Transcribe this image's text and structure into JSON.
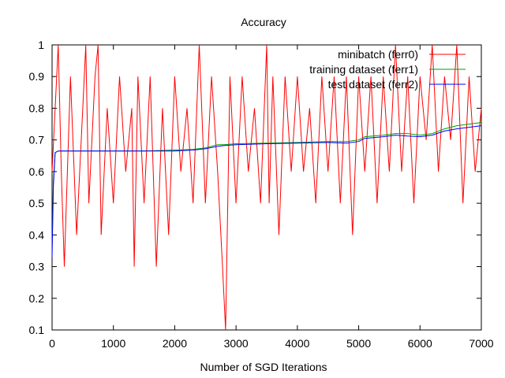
{
  "chart_data": {
    "type": "line",
    "title": "Accuracy",
    "xlabel": "Number of SGD Iterations",
    "ylabel": "",
    "xlim": [
      0,
      7000
    ],
    "ylim": [
      0.1,
      1
    ],
    "grid": false,
    "legend_position": "top-right",
    "x_ticks": [
      "0",
      "1000",
      "2000",
      "3000",
      "4000",
      "5000",
      "6000",
      "7000"
    ],
    "y_ticks": [
      "0.1",
      "0.2",
      "0.3",
      "0.4",
      "0.5",
      "0.6",
      "0.7",
      "0.8",
      "0.9",
      "1"
    ],
    "series": [
      {
        "name": "minibatch (ferr0)",
        "color": "#ff0000",
        "x": [
          0,
          50,
          100,
          150,
          200,
          300,
          400,
          500,
          550,
          600,
          700,
          750,
          800,
          900,
          1000,
          1100,
          1200,
          1300,
          1340,
          1400,
          1500,
          1600,
          1700,
          1800,
          1900,
          2000,
          2100,
          2200,
          2300,
          2400,
          2500,
          2600,
          2700,
          2780,
          2830,
          2900,
          3000,
          3100,
          3200,
          3300,
          3400,
          3500,
          3540,
          3600,
          3700,
          3800,
          3900,
          4000,
          4100,
          4200,
          4300,
          4400,
          4500,
          4600,
          4700,
          4800,
          4900,
          5000,
          5100,
          5200,
          5300,
          5400,
          5500,
          5600,
          5700,
          5800,
          5900,
          6000,
          6100,
          6200,
          6300,
          6400,
          6500,
          6600,
          6700,
          6800,
          6900,
          7000
        ],
        "y": [
          0.6,
          0.8,
          1.0,
          0.6,
          0.3,
          0.9,
          0.4,
          0.8,
          1.0,
          0.5,
          0.9,
          1.0,
          0.4,
          0.8,
          0.5,
          0.9,
          0.6,
          0.8,
          0.3,
          0.9,
          0.5,
          0.9,
          0.3,
          0.8,
          0.4,
          0.9,
          0.6,
          0.8,
          0.5,
          1.0,
          0.5,
          0.9,
          0.6,
          0.3,
          0.1,
          0.9,
          0.5,
          0.9,
          0.6,
          0.8,
          0.5,
          1.0,
          0.5,
          0.9,
          0.4,
          0.9,
          0.6,
          0.9,
          0.6,
          0.8,
          0.5,
          0.9,
          0.6,
          0.9,
          0.5,
          0.9,
          0.4,
          0.9,
          0.6,
          0.9,
          0.5,
          0.9,
          0.6,
          1.0,
          0.6,
          0.9,
          0.5,
          0.9,
          0.7,
          1.0,
          0.6,
          0.9,
          0.7,
          1.0,
          0.5,
          0.9,
          0.6,
          0.8
        ]
      },
      {
        "name": "training dataset (ferr1)",
        "color": "#00a000",
        "x": [
          0,
          20,
          50,
          100,
          500,
          1000,
          1500,
          2000,
          2300,
          2500,
          2700,
          2800,
          3000,
          3500,
          4000,
          4500,
          4800,
          5000,
          5100,
          5400,
          5600,
          5800,
          6000,
          6200,
          6400,
          6600,
          6800,
          7000
        ],
        "y": [
          0.35,
          0.57,
          0.66,
          0.665,
          0.665,
          0.665,
          0.665,
          0.668,
          0.67,
          0.675,
          0.685,
          0.685,
          0.688,
          0.69,
          0.692,
          0.695,
          0.695,
          0.7,
          0.71,
          0.715,
          0.72,
          0.72,
          0.715,
          0.72,
          0.735,
          0.745,
          0.75,
          0.755
        ]
      },
      {
        "name": "test dataset (ferr2)",
        "color": "#0000ff",
        "x": [
          0,
          20,
          50,
          100,
          500,
          1000,
          1500,
          2000,
          2300,
          2500,
          2700,
          2800,
          3000,
          3500,
          4000,
          4500,
          4800,
          5000,
          5100,
          5400,
          5600,
          5800,
          6000,
          6200,
          6400,
          6600,
          6800,
          7000
        ],
        "y": [
          0.33,
          0.55,
          0.66,
          0.665,
          0.665,
          0.665,
          0.665,
          0.665,
          0.668,
          0.672,
          0.68,
          0.682,
          0.685,
          0.688,
          0.69,
          0.692,
          0.69,
          0.695,
          0.705,
          0.71,
          0.715,
          0.712,
          0.71,
          0.715,
          0.728,
          0.735,
          0.74,
          0.745
        ]
      }
    ]
  }
}
